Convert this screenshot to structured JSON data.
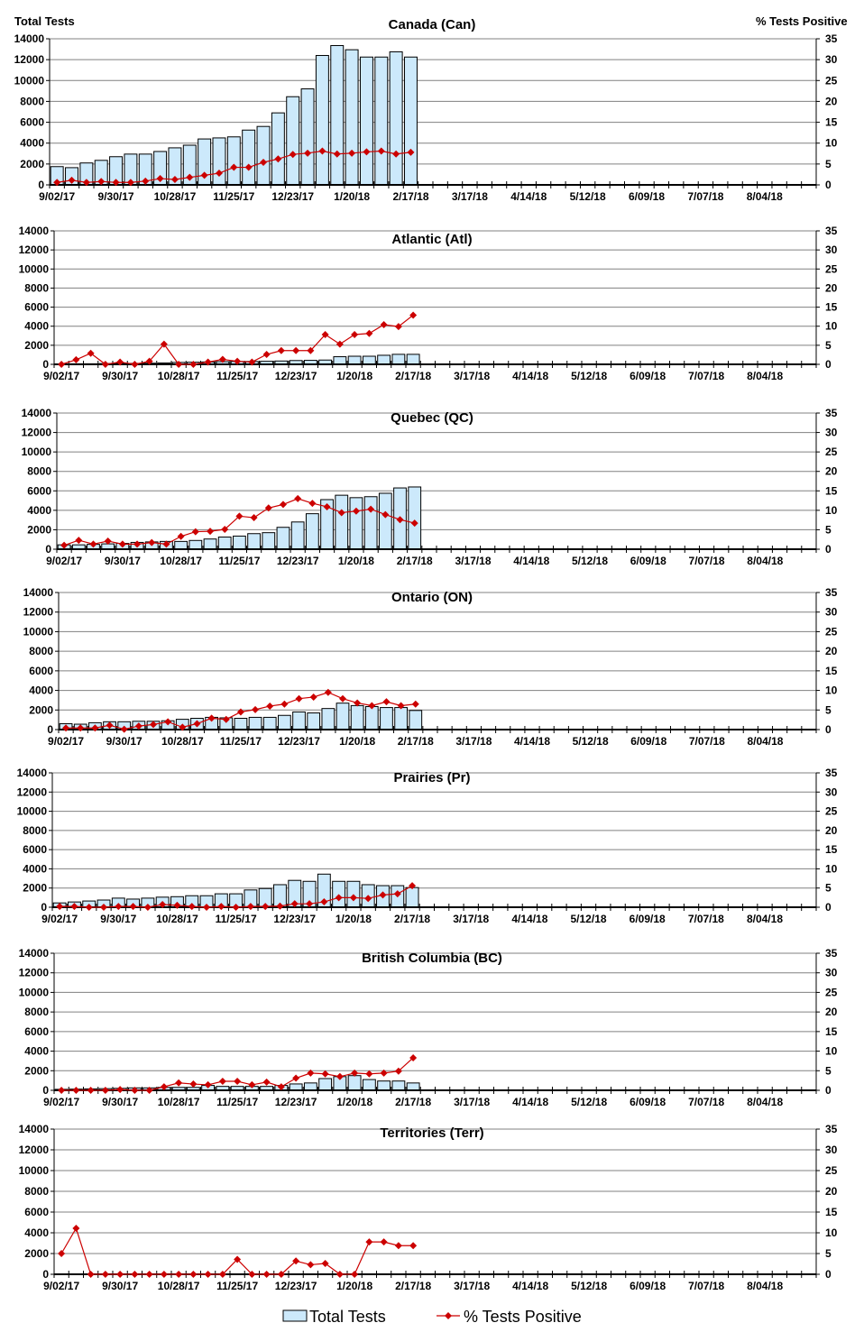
{
  "header": {
    "left_axis_title": "Total Tests",
    "right_axis_title": "% Tests Positive"
  },
  "legend": {
    "bars": "Total Tests",
    "line": "% Tests Positive"
  },
  "colors": {
    "bar_fill": "#cce9fb",
    "bar_stroke": "#000000",
    "line": "#cc0000",
    "grid": "#808080"
  },
  "chart_data": [
    {
      "type": "bar+line",
      "title": "Canada (Can)",
      "ylabel": "Total Tests",
      "y2label": "% Tests Positive",
      "ylim": [
        0,
        14000
      ],
      "y2lim": [
        0,
        35
      ],
      "yticks": [
        0,
        2000,
        4000,
        6000,
        8000,
        10000,
        12000,
        14000
      ],
      "y2ticks": [
        0,
        5,
        10,
        15,
        20,
        25,
        30,
        35
      ],
      "total_tests": [
        1750,
        1650,
        2100,
        2350,
        2700,
        2950,
        2950,
        3200,
        3550,
        3800,
        4400,
        4500,
        4600,
        5250,
        5600,
        6900,
        8450,
        9200,
        12400,
        13350,
        12950,
        12250,
        12250,
        12750,
        12250
      ],
      "pct_positive": [
        0.6,
        1.1,
        0.6,
        0.8,
        0.6,
        0.6,
        0.9,
        1.5,
        1.3,
        1.8,
        2.3,
        2.8,
        4.2,
        4.2,
        5.4,
        6.2,
        7.3,
        7.6,
        8.1,
        7.4,
        7.6,
        7.9,
        8.1,
        7.4,
        7.8
      ]
    },
    {
      "type": "bar+line",
      "title": "Atlantic (Atl)",
      "ylim": [
        0,
        14000
      ],
      "y2lim": [
        0,
        35
      ],
      "yticks": [
        0,
        2000,
        4000,
        6000,
        8000,
        10000,
        12000,
        14000
      ],
      "y2ticks": [
        0,
        5,
        10,
        15,
        20,
        25,
        30,
        35
      ],
      "total_tests": [
        50,
        60,
        60,
        80,
        100,
        100,
        120,
        150,
        200,
        220,
        250,
        280,
        300,
        300,
        320,
        350,
        400,
        420,
        450,
        800,
        850,
        850,
        950,
        1050,
        1050
      ],
      "pct_positive": [
        0,
        1.2,
        2.9,
        0,
        0.6,
        0,
        0.8,
        5.3,
        0,
        0,
        0.6,
        1.3,
        0.8,
        0.6,
        2.6,
        3.6,
        3.6,
        3.6,
        7.8,
        5.3,
        7.8,
        8.1,
        10.4,
        9.9,
        12.9
      ]
    },
    {
      "type": "bar+line",
      "title": "Quebec (QC)",
      "ylim": [
        0,
        14000
      ],
      "y2lim": [
        0,
        35
      ],
      "yticks": [
        0,
        2000,
        4000,
        6000,
        8000,
        10000,
        12000,
        14000
      ],
      "y2ticks": [
        0,
        5,
        10,
        15,
        20,
        25,
        30,
        35
      ],
      "total_tests": [
        450,
        450,
        500,
        550,
        600,
        700,
        750,
        800,
        800,
        900,
        1050,
        1250,
        1350,
        1600,
        1700,
        2250,
        2800,
        3650,
        5100,
        5550,
        5300,
        5400,
        5750,
        6300,
        6400
      ],
      "pct_positive": [
        1.0,
        2.3,
        1.3,
        2.1,
        1.3,
        1.3,
        1.7,
        1.3,
        3.3,
        4.5,
        4.6,
        5.1,
        8.5,
        8.1,
        10.6,
        11.5,
        13.0,
        11.8,
        10.9,
        9.4,
        9.8,
        10.3,
        8.9,
        7.6,
        6.7
      ]
    },
    {
      "type": "bar+line",
      "title": "Ontario (ON)",
      "ylim": [
        0,
        14000
      ],
      "y2lim": [
        0,
        35
      ],
      "yticks": [
        0,
        2000,
        4000,
        6000,
        8000,
        10000,
        12000,
        14000
      ],
      "y2ticks": [
        0,
        5,
        10,
        15,
        20,
        25,
        30,
        35
      ],
      "total_tests": [
        600,
        550,
        700,
        800,
        800,
        850,
        850,
        900,
        1050,
        1150,
        1250,
        1200,
        1150,
        1250,
        1250,
        1450,
        1800,
        1700,
        2150,
        2700,
        2450,
        2350,
        2250,
        2250,
        1950
      ],
      "pct_positive": [
        0.4,
        0.4,
        0.4,
        1.1,
        0.1,
        0.9,
        1.3,
        2.0,
        0.6,
        1.5,
        2.9,
        2.6,
        4.5,
        5.1,
        6.0,
        6.5,
        7.9,
        8.3,
        9.5,
        7.9,
        6.8,
        6.1,
        7.1,
        6.1,
        6.5
      ]
    },
    {
      "type": "bar+line",
      "title": "Prairies (Pr)",
      "ylim": [
        0,
        14000
      ],
      "y2lim": [
        0,
        35
      ],
      "yticks": [
        0,
        2000,
        4000,
        6000,
        8000,
        10000,
        12000,
        14000
      ],
      "y2ticks": [
        0,
        5,
        10,
        15,
        20,
        25,
        30,
        35
      ],
      "total_tests": [
        450,
        550,
        650,
        750,
        950,
        850,
        950,
        1050,
        1100,
        1200,
        1200,
        1400,
        1400,
        1800,
        1950,
        2350,
        2800,
        2700,
        3450,
        2700,
        2700,
        2350,
        2250,
        2250,
        2050
      ],
      "pct_positive": [
        0.2,
        0.2,
        0,
        0,
        0.2,
        0.2,
        0,
        0.7,
        0.5,
        0.2,
        0,
        0.2,
        0,
        0.2,
        0.2,
        0.3,
        0.9,
        0.9,
        1.4,
        2.5,
        2.5,
        2.3,
        3.2,
        3.5,
        5.6
      ]
    },
    {
      "type": "bar+line",
      "title": "British Columbia (BC)",
      "ylim": [
        0,
        14000
      ],
      "y2lim": [
        0,
        35
      ],
      "yticks": [
        0,
        2000,
        4000,
        6000,
        8000,
        10000,
        12000,
        14000
      ],
      "y2ticks": [
        0,
        5,
        10,
        15,
        20,
        25,
        30,
        35
      ],
      "total_tests": [
        100,
        120,
        150,
        170,
        200,
        250,
        250,
        300,
        300,
        300,
        500,
        400,
        400,
        400,
        400,
        500,
        650,
        750,
        1200,
        1400,
        1500,
        1100,
        950,
        950,
        750
      ],
      "pct_positive": [
        0,
        0,
        0,
        0,
        0.2,
        0,
        0,
        0.9,
        1.9,
        1.6,
        1.4,
        2.3,
        2.3,
        1.4,
        2.1,
        0.9,
        3.1,
        4.4,
        4.2,
        3.5,
        4.4,
        4.2,
        4.4,
        4.9,
        8.3
      ]
    },
    {
      "type": "bar+line",
      "title": "Territories (Terr)",
      "ylim": [
        0,
        14000
      ],
      "y2lim": [
        0,
        35
      ],
      "yticks": [
        0,
        2000,
        4000,
        6000,
        8000,
        10000,
        12000,
        14000
      ],
      "y2ticks": [
        0,
        5,
        10,
        15,
        20,
        25,
        30,
        35
      ],
      "total_tests": [
        20,
        20,
        10,
        10,
        10,
        10,
        10,
        10,
        10,
        10,
        10,
        10,
        20,
        10,
        10,
        10,
        20,
        20,
        20,
        10,
        10,
        30,
        30,
        30,
        30
      ],
      "pct_positive": [
        5.0,
        11.1,
        0,
        0,
        0,
        0,
        0,
        0,
        0,
        0,
        0,
        0,
        3.6,
        0,
        0,
        0,
        3.2,
        2.3,
        2.6,
        0,
        0,
        7.8,
        7.8,
        6.9,
        6.9
      ]
    }
  ],
  "x_axis": {
    "weeks_total": 52,
    "tick_labels": [
      "9/02/17",
      "9/30/17",
      "10/28/17",
      "11/25/17",
      "12/23/17",
      "1/20/18",
      "2/17/18",
      "3/17/18",
      "4/14/18",
      "5/12/18",
      "6/09/18",
      "7/07/18",
      "8/04/18"
    ]
  }
}
